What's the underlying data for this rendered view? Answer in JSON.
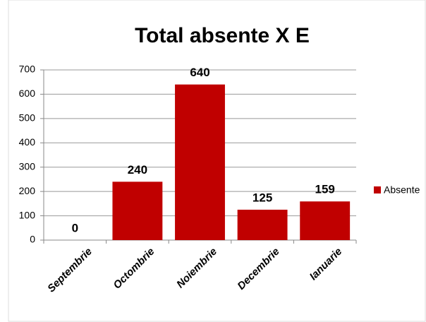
{
  "chart_data": {
    "type": "bar",
    "title": "Total absente X E",
    "categories": [
      "Septembrie",
      "Octombrie",
      "Noiembrie",
      "Decembrie",
      "Ianuarie"
    ],
    "series": [
      {
        "name": "Absente",
        "color": "#c00000",
        "values": [
          0,
          240,
          640,
          125,
          159
        ]
      }
    ],
    "ylim": [
      0,
      700
    ],
    "yticks": [
      0,
      100,
      200,
      300,
      400,
      500,
      600,
      700
    ],
    "grid": true,
    "legend": "right"
  }
}
